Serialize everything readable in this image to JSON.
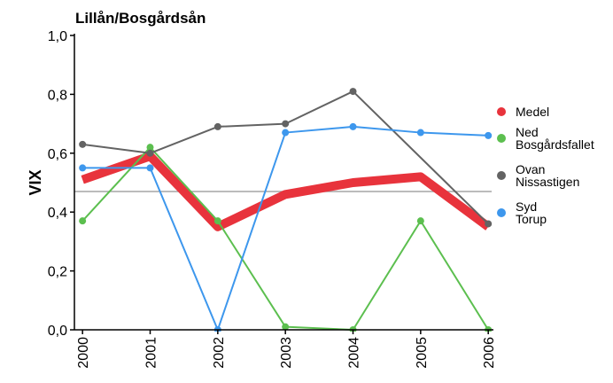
{
  "chart_data": {
    "type": "line",
    "title": "Lillån/Bosgårdsån",
    "y_label": "VIX",
    "xlim": [
      1999.88,
      2006.05
    ],
    "xticks": [
      2000,
      2001,
      2002,
      2003,
      2004,
      2005,
      2006
    ],
    "ylim": [
      0,
      1
    ],
    "yticks": [
      {
        "value": 0,
        "label": "0,0"
      },
      {
        "value": 0.2,
        "label": "0,2"
      },
      {
        "value": 0.4,
        "label": "0,4"
      },
      {
        "value": 0.6,
        "label": "0,6"
      },
      {
        "value": 0.8,
        "label": "0,8"
      },
      {
        "value": 1,
        "label": "1,0"
      }
    ],
    "reference_line": 0.47,
    "reference_color": "#a6a6a6",
    "series": [
      {
        "name": "Medel",
        "color": "#e8333c",
        "width": 10,
        "markers": false,
        "x": [
          2000,
          2001,
          2002,
          2003,
          2004,
          2005,
          2006
        ],
        "values": [
          0.51,
          0.59,
          0.35,
          0.46,
          0.5,
          0.52,
          0.35
        ]
      },
      {
        "name": "Ned Bosgårdsfallet",
        "color": "#5cbf4f",
        "width": 2,
        "markers": true,
        "x": [
          2000,
          2001,
          2002,
          2003,
          2004,
          2005,
          2006
        ],
        "values": [
          0.37,
          0.62,
          0.37,
          0.01,
          0.0,
          0.37,
          0.0
        ]
      },
      {
        "name": "Ovan Nissastigen",
        "color": "#636363",
        "width": 2,
        "markers": true,
        "x": [
          2000,
          2001,
          2002,
          2003,
          2004,
          2006
        ],
        "values": [
          0.63,
          0.6,
          0.69,
          0.7,
          0.81,
          0.36
        ]
      },
      {
        "name": "Syd Torup",
        "color": "#3d97ed",
        "width": 2,
        "markers": true,
        "x": [
          2000,
          2001,
          2002,
          2003,
          2004,
          2005,
          2006
        ],
        "values": [
          0.55,
          0.55,
          0.0,
          0.67,
          0.69,
          0.67,
          0.66
        ]
      }
    ]
  }
}
